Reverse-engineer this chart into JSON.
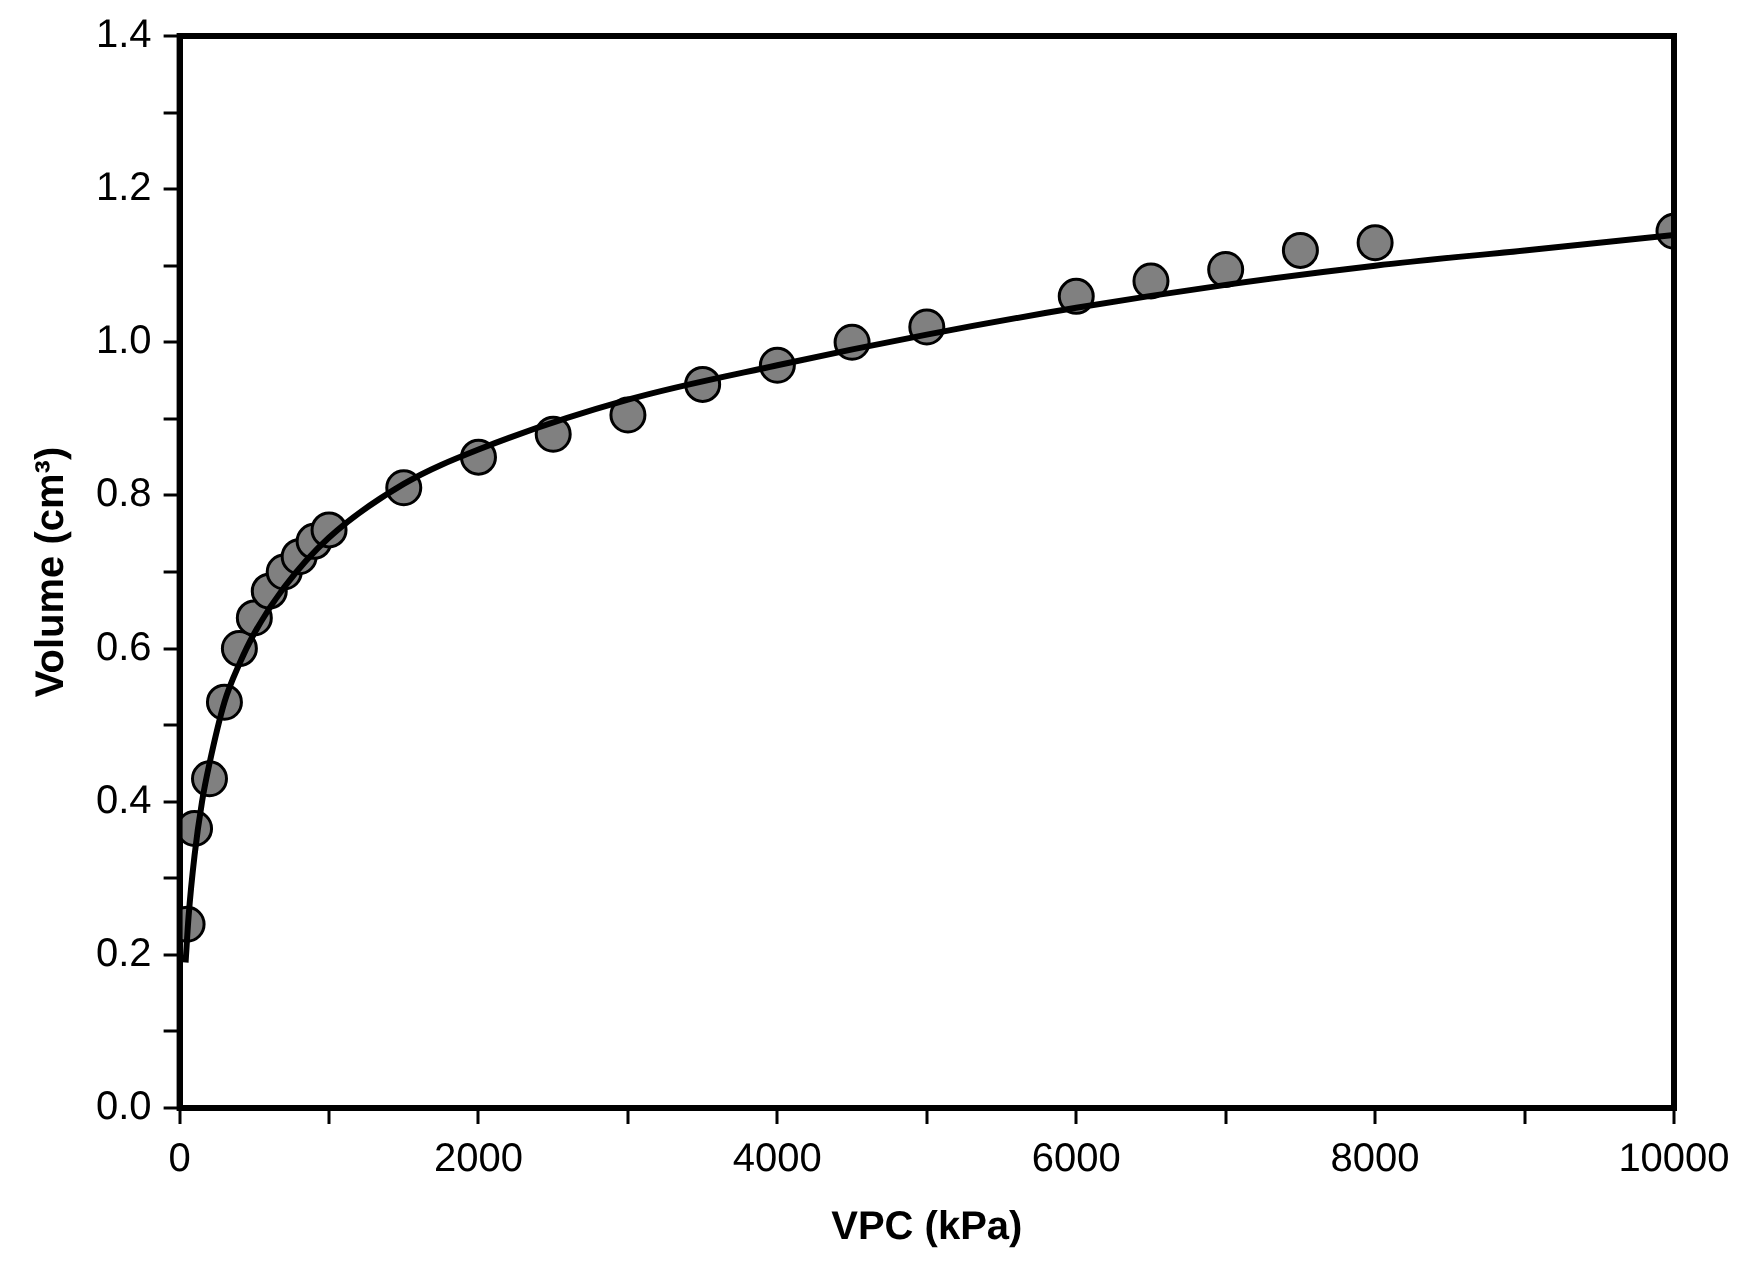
{
  "chart_data": {
    "type": "scatter",
    "xlabel": "VPC (kPa)",
    "ylabel": "Volume (cm³)",
    "xlim": [
      0,
      10000
    ],
    "ylim": [
      0,
      1.4
    ],
    "xticks": [
      0,
      {
        "value": 1000,
        "label": null
      },
      2000,
      {
        "value": 3000,
        "label": null
      },
      4000,
      {
        "value": 5000,
        "label": null
      },
      6000,
      {
        "value": 7000,
        "label": null
      },
      8000,
      {
        "value": 9000,
        "label": null
      },
      10000
    ],
    "yticks": [
      "0.0",
      {
        "value": 0.1,
        "label": null
      },
      0.2,
      {
        "value": 0.3,
        "label": null
      },
      0.4,
      {
        "value": 0.5,
        "label": null
      },
      0.6,
      {
        "value": 0.7,
        "label": null
      },
      0.8,
      {
        "value": 0.9,
        "label": null
      },
      {
        "value": 1.0,
        "label": "1.0"
      },
      {
        "value": 1.1,
        "label": null
      },
      1.2,
      {
        "value": 1.3,
        "label": null
      },
      1.4
    ],
    "grid": false,
    "legend": false,
    "marker": "circle",
    "series": [
      {
        "type": "scatter",
        "color": "#808080",
        "x": [
          50,
          100,
          200,
          300,
          400,
          500,
          600,
          700,
          800,
          900,
          1000,
          1500,
          2000,
          2500,
          3000,
          3500,
          4000,
          4500,
          5000,
          6000,
          6500,
          7000,
          7500,
          8000,
          10000
        ],
        "values": [
          0.24,
          0.365,
          0.43,
          0.53,
          0.6,
          0.64,
          0.675,
          0.7,
          0.72,
          0.74,
          0.755,
          0.81,
          0.85,
          0.88,
          0.905,
          0.945,
          0.97,
          1.0,
          1.02,
          1.06,
          1.08,
          1.095,
          1.12,
          1.13,
          1.145
        ]
      },
      {
        "type": "line",
        "color": "#000000",
        "marker": "none",
        "line_style": "solid",
        "x": [
          40,
          60,
          100,
          150,
          200,
          300,
          400,
          500,
          700,
          1000,
          1500,
          2000,
          3000,
          4000,
          5000,
          6000,
          7000,
          8000,
          9000,
          10000
        ],
        "values": [
          0.19,
          0.25,
          0.33,
          0.4,
          0.45,
          0.53,
          0.58,
          0.62,
          0.68,
          0.745,
          0.815,
          0.86,
          0.925,
          0.97,
          1.01,
          1.045,
          1.075,
          1.1,
          1.12,
          1.14
        ]
      }
    ]
  }
}
